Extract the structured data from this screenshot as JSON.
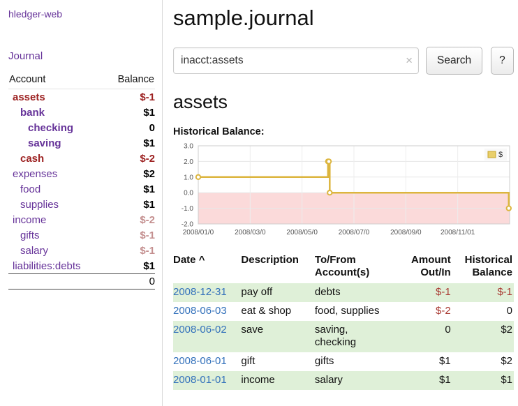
{
  "colors": {
    "purple": "#663399",
    "blue": "#3371bb",
    "negative": "#a93a32",
    "negative-dark": "#9d2222",
    "negative-soft": "#c48f8f",
    "row-green": "#dff0d8",
    "chart-line": "#dcb53e",
    "chart-neg-fill": "#fbdada"
  },
  "sidebar": {
    "brand": "hledger-web",
    "nav": {
      "journal": "Journal"
    },
    "accounts": {
      "header_account": "Account",
      "header_balance": "Balance",
      "rows": [
        {
          "name": "assets",
          "balance": "$-1",
          "indent": 0,
          "bold": true,
          "name_style": "negative",
          "balance_style": "negative"
        },
        {
          "name": "bank",
          "balance": "$1",
          "indent": 1,
          "bold": true
        },
        {
          "name": "checking",
          "balance": "0",
          "indent": 2,
          "bold": true
        },
        {
          "name": "saving",
          "balance": "$1",
          "indent": 2,
          "bold": true
        },
        {
          "name": "cash",
          "balance": "$-2",
          "indent": 1,
          "bold": true,
          "name_style": "negative",
          "balance_style": "negative"
        },
        {
          "name": "expenses",
          "balance": "$2",
          "indent": 0
        },
        {
          "name": "food",
          "balance": "$1",
          "indent": 1
        },
        {
          "name": "supplies",
          "balance": "$1",
          "indent": 1
        },
        {
          "name": "income",
          "balance": "$-2",
          "indent": 0,
          "balance_style": "negative-soft"
        },
        {
          "name": "gifts",
          "balance": "$-1",
          "indent": 1,
          "balance_style": "negative-soft"
        },
        {
          "name": "salary",
          "balance": "$-1",
          "indent": 1,
          "balance_style": "negative-soft"
        },
        {
          "name": "liabilities:debts",
          "balance": "$1",
          "indent": 0
        }
      ],
      "total": "0"
    }
  },
  "main": {
    "title": "sample.journal",
    "search": {
      "value": "inacct:assets",
      "clear": "×",
      "submit": "Search",
      "help": "?"
    },
    "account_heading": "assets",
    "chart_title": "Historical Balance:",
    "register": {
      "headers": {
        "date": "Date",
        "sort_indicator": "^",
        "description": "Description",
        "account": "To/From Account(s)",
        "amount": "Amount Out/In",
        "balance": "Historical Balance"
      },
      "rows": [
        {
          "date": "2008-12-31",
          "description": "pay off",
          "account": "debts",
          "amount": "$-1",
          "balance": "$-1",
          "amount_negative": true,
          "balance_negative": true,
          "shaded": true
        },
        {
          "date": "2008-06-03",
          "description": "eat & shop",
          "account": "food, supplies",
          "amount": "$-2",
          "balance": "0",
          "amount_negative": true,
          "balance_negative": false,
          "shaded": false
        },
        {
          "date": "2008-06-02",
          "description": "save",
          "account": "saving, checking",
          "amount": "0",
          "balance": "$2",
          "amount_negative": false,
          "balance_negative": false,
          "shaded": true
        },
        {
          "date": "2008-06-01",
          "description": "gift",
          "account": "gifts",
          "amount": "$1",
          "balance": "$2",
          "amount_negative": false,
          "balance_negative": false,
          "shaded": false
        },
        {
          "date": "2008-01-01",
          "description": "income",
          "account": "salary",
          "amount": "$1",
          "balance": "$1",
          "amount_negative": false,
          "balance_negative": false,
          "shaded": true
        }
      ]
    }
  },
  "chart_data": {
    "type": "line",
    "step": true,
    "title": "Historical Balance:",
    "series": [
      {
        "name": "$",
        "points": [
          {
            "date": "2008-01-01",
            "x": 0.0,
            "y": 1
          },
          {
            "date": "2008-06-01",
            "x": 0.4167,
            "y": 2
          },
          {
            "date": "2008-06-02",
            "x": 0.4194,
            "y": 2
          },
          {
            "date": "2008-06-03",
            "x": 0.4222,
            "y": 0
          },
          {
            "date": "2008-12-31",
            "x": 0.9973,
            "y": -1
          }
        ]
      }
    ],
    "ylim": [
      -2,
      3
    ],
    "yticks": [
      3.0,
      2.0,
      1.0,
      0.0,
      -1.0,
      -2.0
    ],
    "ytick_labels": [
      "3.0",
      "2.0",
      "1.0",
      "0.0",
      "-1.0",
      "-2.0"
    ],
    "xticks": [
      {
        "label": "2008/01/0",
        "x": 0.0
      },
      {
        "label": "2008/03/0",
        "x": 0.1667
      },
      {
        "label": "2008/05/0",
        "x": 0.3333
      },
      {
        "label": "2008/07/0",
        "x": 0.5
      },
      {
        "label": "2008/09/0",
        "x": 0.6667
      },
      {
        "label": "2008/11/01",
        "x": 0.8333
      }
    ],
    "legend": {
      "label": "$",
      "position": "top-right"
    },
    "grid": true
  }
}
